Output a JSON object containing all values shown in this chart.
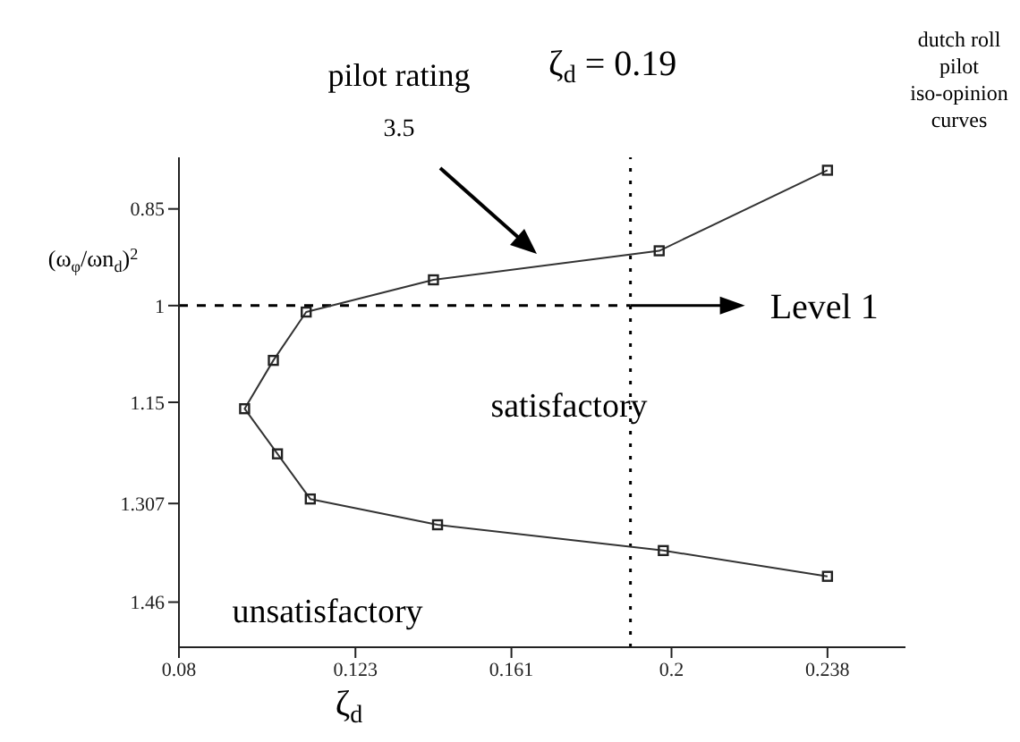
{
  "chart_data": {
    "type": "line",
    "title": "dutch roll\npilot\niso-opinion\ncurves",
    "xlabel": "ζ$_{d}$",
    "ylabel": "(ω$_{φ}$/ωn$_{d}$)$^{2}$",
    "x": [
      0.238,
      0.197,
      0.142,
      0.111,
      0.103,
      0.096,
      0.104,
      0.112,
      0.143,
      0.198,
      0.238
    ],
    "series": [
      {
        "color": "#333333",
        "values": [
          0.79,
          0.915,
          0.96,
          1.01,
          1.085,
          1.16,
          1.23,
          1.3,
          1.34,
          1.38,
          1.42
        ]
      }
    ],
    "xlim": [
      0.08,
      0.257
    ],
    "xticks": [
      0.08,
      0.123,
      0.161,
      0.2,
      0.238
    ],
    "ylim": [
      1.53,
      0.77
    ],
    "yticks": [
      0.85,
      1,
      1.15,
      1.307,
      1.46
    ],
    "ref_lines": [
      {
        "axis": "y",
        "value": 1,
        "label": "Level 1",
        "line_style": "dashed",
        "color": "#000000"
      },
      {
        "axis": "x",
        "value": 0.19,
        "label": "ζ$_{d}$ = 0.19",
        "line_style": "dotted",
        "color": "#000000"
      }
    ],
    "annotations": [
      "pilot rating",
      "3.5",
      "satisfactory",
      "unsatisfactory"
    ],
    "marker": "square",
    "line_style": "solid",
    "grid": false,
    "legend": false
  }
}
